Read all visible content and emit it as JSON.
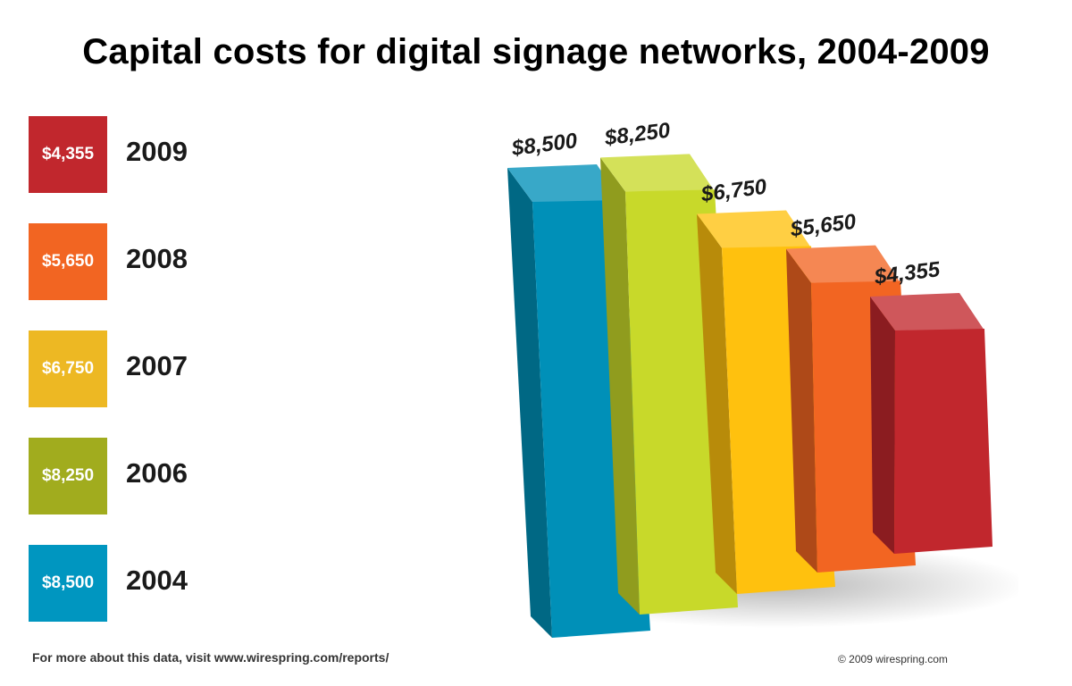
{
  "title": "Capital costs for digital signage networks, 2004-2009",
  "legend": [
    {
      "value": "$4,355",
      "year": "2009",
      "color": "#C1272D"
    },
    {
      "value": "$5,650",
      "year": "2008",
      "color": "#F26522"
    },
    {
      "value": "$6,750",
      "year": "2007",
      "color": "#EDB823"
    },
    {
      "value": "$8,250",
      "year": "2006",
      "color": "#A1AC1E"
    },
    {
      "value": "$8,500",
      "year": "2004",
      "color": "#0096C0"
    }
  ],
  "chart_data": {
    "type": "bar",
    "categories": [
      "2004",
      "2006",
      "2007",
      "2008",
      "2009"
    ],
    "values": [
      8500,
      8250,
      6750,
      5650,
      4355
    ],
    "labels": [
      "$8,500",
      "$8,250",
      "$6,750",
      "$5,650",
      "$4,355"
    ],
    "colors": [
      "#0090B8",
      "#C8D92A",
      "#FFC10E",
      "#F26522",
      "#C1272D"
    ],
    "title": "Capital costs for digital signage networks, 2004-2009",
    "xlabel": "",
    "ylabel": "",
    "style": "3d",
    "grid": false
  },
  "footer": {
    "source_text": "For more about this data, visit www.wirespring.com/reports/",
    "copyright": "© 2009 wirespring.com"
  }
}
